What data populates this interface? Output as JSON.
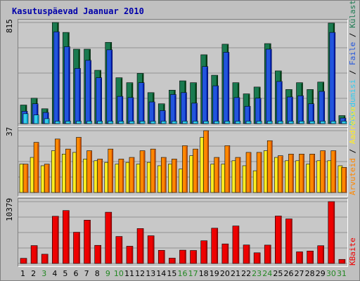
{
  "chart_data": [
    {
      "type": "bar",
      "title": "Kasutuspäevad Jaanuar 2010",
      "y_max_label": "815",
      "categories": [
        "1",
        "2",
        "3",
        "4",
        "5",
        "6",
        "7",
        "8",
        "9",
        "10",
        "11",
        "12",
        "13",
        "14",
        "15",
        "16",
        "17",
        "18",
        "19",
        "20",
        "21",
        "22",
        "23",
        "24",
        "25",
        "26",
        "27",
        "28",
        "29",
        "30",
        "31"
      ],
      "weekend_days": [
        "3",
        "9",
        "10",
        "16",
        "17",
        "23",
        "24",
        "30",
        "31"
      ],
      "series": [
        {
          "name": "Külastajaid",
          "color": "#1a7a50",
          "values": [
            150,
            205,
            120,
            815,
            735,
            600,
            600,
            430,
            655,
            370,
            330,
            405,
            250,
            160,
            270,
            345,
            330,
            555,
            390,
            640,
            330,
            240,
            295,
            645,
            425,
            275,
            330,
            275,
            335,
            810,
            65
          ]
        },
        {
          "name": "Faile",
          "color": "#2255dd",
          "values": [
            100,
            160,
            90,
            740,
            620,
            445,
            510,
            370,
            595,
            220,
            210,
            330,
            175,
            105,
            235,
            250,
            165,
            460,
            305,
            575,
            210,
            140,
            205,
            600,
            340,
            215,
            225,
            160,
            260,
            735,
            45
          ]
        },
        {
          "name": "Pöördumisi",
          "color": "#33ccee",
          "values": [
            80,
            70,
            40,
            20,
            20,
            20,
            20,
            20,
            20,
            20,
            20,
            20,
            20,
            20,
            20,
            20,
            20,
            20,
            20,
            20,
            20,
            20,
            20,
            20,
            20,
            20,
            20,
            20,
            20,
            20,
            20
          ]
        }
      ]
    },
    {
      "type": "bar",
      "y_max_label": "37",
      "categories": [
        "1",
        "2",
        "3",
        "4",
        "5",
        "6",
        "7",
        "8",
        "9",
        "10",
        "11",
        "12",
        "13",
        "14",
        "15",
        "16",
        "17",
        "18",
        "19",
        "20",
        "21",
        "22",
        "23",
        "24",
        "25",
        "26",
        "27",
        "28",
        "29",
        "30",
        "31"
      ],
      "series": [
        {
          "name": "Aadresse",
          "color": "#ffee22",
          "values": [
            17,
            21,
            16,
            25,
            23,
            24,
            20,
            19,
            18,
            17,
            18,
            17,
            18,
            16,
            17,
            14,
            22,
            33,
            17,
            17,
            19,
            16,
            13,
            25,
            21,
            19,
            19,
            17,
            19,
            19,
            16
          ]
        },
        {
          "name": "Arvuteid",
          "color": "#ff8800",
          "values": [
            17,
            30,
            17,
            32,
            26,
            33,
            25,
            20,
            26,
            20,
            21,
            25,
            26,
            21,
            20,
            28,
            26,
            37,
            21,
            28,
            21,
            24,
            24,
            31,
            22,
            23,
            23,
            23,
            25,
            25,
            15
          ]
        }
      ]
    },
    {
      "type": "bar",
      "y_max_label": "10379",
      "categories": [
        "1",
        "2",
        "3",
        "4",
        "5",
        "6",
        "7",
        "8",
        "9",
        "10",
        "11",
        "12",
        "13",
        "14",
        "15",
        "16",
        "17",
        "18",
        "19",
        "20",
        "21",
        "22",
        "23",
        "24",
        "25",
        "26",
        "27",
        "28",
        "29",
        "30",
        "31"
      ],
      "series": [
        {
          "name": "KBaite",
          "color": "#ee0000",
          "values": [
            860,
            3000,
            1550,
            7920,
            8880,
            5240,
            7270,
            3040,
            8600,
            4530,
            2890,
            5860,
            4650,
            2200,
            890,
            2230,
            2180,
            3810,
            5920,
            3280,
            6290,
            3100,
            1790,
            3080,
            7960,
            7480,
            1950,
            2090,
            2980,
            10379,
            680
          ]
        }
      ]
    }
  ],
  "legends": {
    "panel1": [
      "Pöördumisi",
      "Faile",
      "Külastajaid"
    ],
    "panel2": [
      "Arvuteid",
      "Aadresse"
    ],
    "panel3": [
      "KBaite"
    ],
    "separator": " / "
  },
  "colors": {
    "background": "#c0c0c0",
    "panel": "#c8c8c8",
    "gridline": "#808080",
    "title": "#0000aa",
    "weekday_label": "#000000",
    "weekend_label": "#228822"
  }
}
